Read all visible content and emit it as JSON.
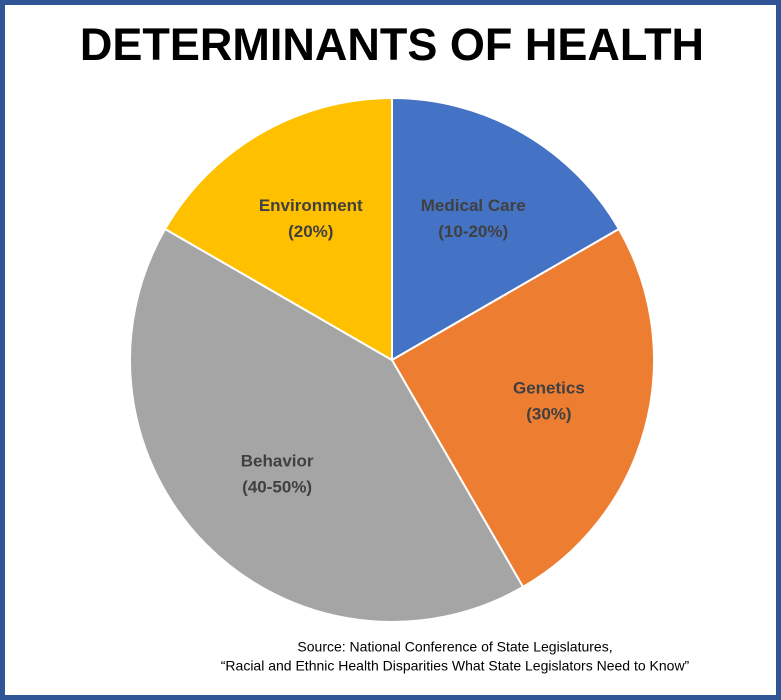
{
  "chart_data": {
    "type": "pie",
    "title": "DETERMINANTS OF HEALTH",
    "categories": [
      "Medical Care",
      "Genetics",
      "Behavior",
      "Environment"
    ],
    "values": [
      20,
      30,
      50,
      20
    ],
    "value_labels": [
      "(10-20%)",
      "(30%)",
      "(40-50%)",
      "(20%)"
    ],
    "colors": [
      "#4472c4",
      "#ed7d31",
      "#a5a5a5",
      "#ffc000"
    ],
    "source": [
      "Source: National Conference of State Legislatures,",
      "“Racial and Ethnic Health Disparities What State Legislators Need to Know”"
    ]
  }
}
